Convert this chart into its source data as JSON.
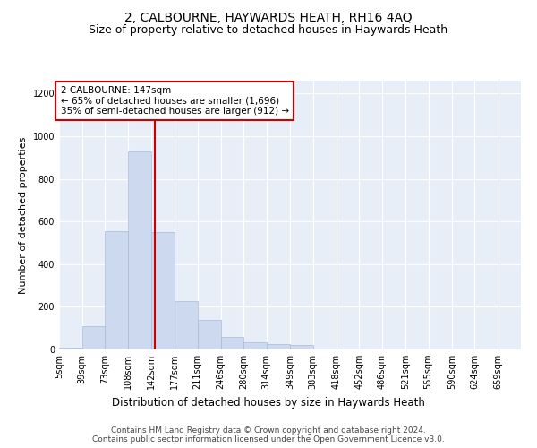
{
  "title": "2, CALBOURNE, HAYWARDS HEATH, RH16 4AQ",
  "subtitle": "Size of property relative to detached houses in Haywards Heath",
  "xlabel": "Distribution of detached houses by size in Haywards Heath",
  "ylabel": "Number of detached properties",
  "bar_color": "#ccd9ee",
  "bar_edgecolor": "#aabbd8",
  "vline_color": "#cc0000",
  "vline_x": 147,
  "annotation_text": "2 CALBOURNE: 147sqm\n← 65% of detached houses are smaller (1,696)\n35% of semi-detached houses are larger (912) →",
  "annotation_box_edgecolor": "#cc0000",
  "bin_edges": [
    5,
    39,
    73,
    108,
    142,
    177,
    211,
    246,
    280,
    314,
    349,
    383,
    418,
    452,
    486,
    521,
    555,
    590,
    624,
    659,
    693
  ],
  "bar_heights": [
    10,
    110,
    555,
    930,
    550,
    225,
    140,
    57,
    35,
    25,
    20,
    5,
    0,
    0,
    0,
    0,
    0,
    0,
    0,
    0
  ],
  "ylim": [
    0,
    1260
  ],
  "yticks": [
    0,
    200,
    400,
    600,
    800,
    1000,
    1200
  ],
  "background_color": "#e8eef8",
  "footer_line1": "Contains HM Land Registry data © Crown copyright and database right 2024.",
  "footer_line2": "Contains public sector information licensed under the Open Government Licence v3.0.",
  "title_fontsize": 10,
  "subtitle_fontsize": 9,
  "xlabel_fontsize": 8.5,
  "ylabel_fontsize": 8,
  "tick_fontsize": 7,
  "footer_fontsize": 6.5,
  "annotation_fontsize": 7.5
}
